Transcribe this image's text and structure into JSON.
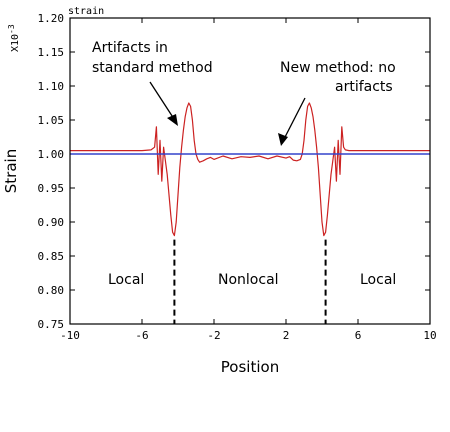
{
  "chart_data": {
    "type": "line",
    "panel_label": "strain",
    "multiplier_label": "X10",
    "multiplier_exponent": "-3",
    "xlabel": "Position",
    "ylabel": "Strain",
    "xlim": [
      -10,
      10
    ],
    "ylim": [
      0.75,
      1.2
    ],
    "x_ticks": [
      -10,
      -6,
      -2,
      2,
      6,
      10
    ],
    "x_tick_labels": [
      "-10",
      "-6",
      "-2",
      "2",
      "6",
      "10"
    ],
    "y_ticks": [
      0.75,
      0.8,
      0.85,
      0.9,
      0.95,
      1.0,
      1.05,
      1.1,
      1.15,
      1.2
    ],
    "y_tick_labels": [
      "0.75",
      "0.80",
      "0.85",
      "0.90",
      "0.95",
      "1.00",
      "1.05",
      "1.10",
      "1.15",
      "1.20"
    ],
    "grid": false,
    "series": [
      {
        "color": "#cc2222",
        "x": [
          -10,
          -6.0,
          -5.5,
          -5.3,
          -5.2,
          -5.1,
          -5.0,
          -4.9,
          -4.8,
          -4.7,
          -4.6,
          -4.5,
          -4.4,
          -4.3,
          -4.2,
          -4.1,
          -4.0,
          -3.9,
          -3.8,
          -3.7,
          -3.6,
          -3.5,
          -3.4,
          -3.3,
          -3.2,
          -3.1,
          -3.0,
          -2.9,
          -2.8,
          -2.6,
          -2.4,
          -2.2,
          -2.0,
          -1.5,
          -1.0,
          -0.5,
          0.0,
          0.5,
          1.0,
          1.5,
          2.0,
          2.2,
          2.4,
          2.6,
          2.8,
          2.9,
          3.0,
          3.1,
          3.2,
          3.3,
          3.4,
          3.5,
          3.6,
          3.7,
          3.8,
          3.9,
          4.0,
          4.1,
          4.2,
          4.3,
          4.4,
          4.5,
          4.6,
          4.7,
          4.8,
          4.9,
          5.0,
          5.1,
          5.2,
          5.3,
          5.5,
          6.0,
          10
        ],
        "y": [
          1.005,
          1.005,
          1.006,
          1.01,
          1.04,
          0.97,
          1.02,
          0.96,
          1.01,
          0.99,
          0.97,
          0.94,
          0.91,
          0.885,
          0.88,
          0.9,
          0.94,
          0.98,
          1.01,
          1.035,
          1.055,
          1.068,
          1.075,
          1.07,
          1.05,
          1.02,
          1.0,
          0.992,
          0.988,
          0.99,
          0.993,
          0.995,
          0.992,
          0.997,
          0.993,
          0.996,
          0.995,
          0.997,
          0.993,
          0.997,
          0.994,
          0.996,
          0.991,
          0.99,
          0.992,
          1.0,
          1.02,
          1.05,
          1.07,
          1.075,
          1.068,
          1.055,
          1.035,
          1.01,
          0.98,
          0.94,
          0.9,
          0.88,
          0.885,
          0.91,
          0.94,
          0.97,
          0.99,
          1.01,
          0.96,
          1.02,
          0.97,
          1.04,
          1.01,
          1.006,
          1.005,
          1.005,
          1.005
        ]
      },
      {
        "color": "#3344cc",
        "x": [
          -10,
          10
        ],
        "y": [
          1.0,
          1.0
        ]
      }
    ],
    "annotations": [
      {
        "line1": "Artifacts in",
        "line2": "standard method"
      },
      {
        "line1": "New method: no",
        "line2": "artifacts"
      }
    ],
    "regions": [
      "Local",
      "Nonlocal",
      "Local"
    ],
    "region_boundaries": [
      -4.2,
      4.2
    ]
  }
}
